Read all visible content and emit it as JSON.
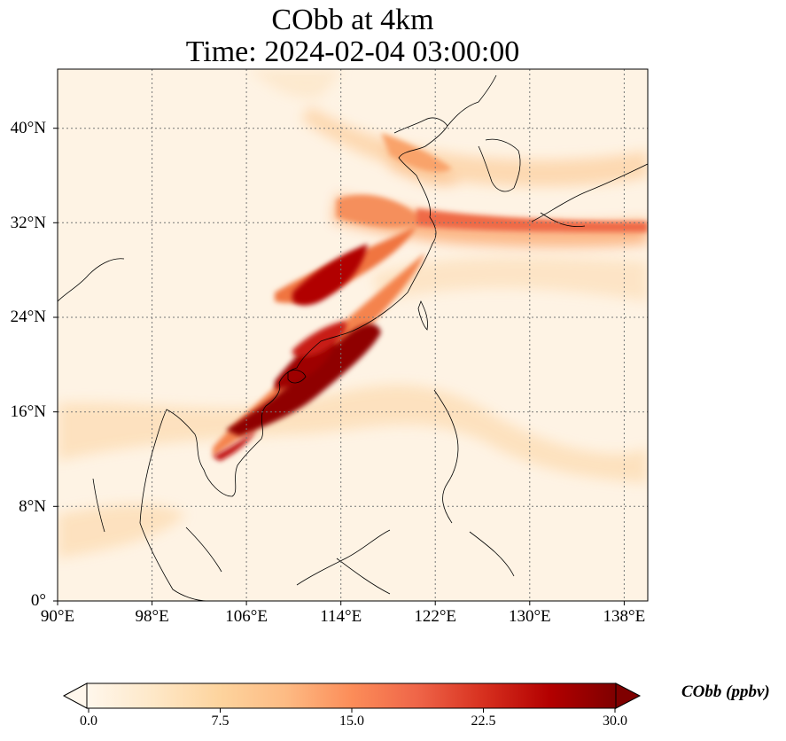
{
  "title_line1": "CObb at 4km",
  "title_line2": "Time: 2024-02-04 03:00:00",
  "map": {
    "variable": "CObb",
    "level": "4km",
    "extent": {
      "lon": [
        90,
        140
      ],
      "lat": [
        0,
        45
      ]
    },
    "lon_ticks": [
      "90°E",
      "98°E",
      "106°E",
      "114°E",
      "122°E",
      "130°E",
      "138°E"
    ],
    "lat_ticks": [
      "40°N",
      "32°N",
      "24°N",
      "16°N",
      "8°N",
      "0°"
    ],
    "gridlines": "dotted",
    "colormap": "OrRd"
  },
  "colorbar": {
    "label": "CObb (ppbv)",
    "ticks": [
      "0.0",
      "7.5",
      "15.0",
      "22.5",
      "30.0"
    ],
    "range": [
      0,
      30
    ],
    "extend": "both",
    "orientation": "horizontal",
    "colors": [
      "#fff7ec",
      "#fee8c8",
      "#fdd49e",
      "#fdbb84",
      "#fc8d59",
      "#ef6548",
      "#d7301f",
      "#b30000",
      "#7f0000"
    ]
  }
}
